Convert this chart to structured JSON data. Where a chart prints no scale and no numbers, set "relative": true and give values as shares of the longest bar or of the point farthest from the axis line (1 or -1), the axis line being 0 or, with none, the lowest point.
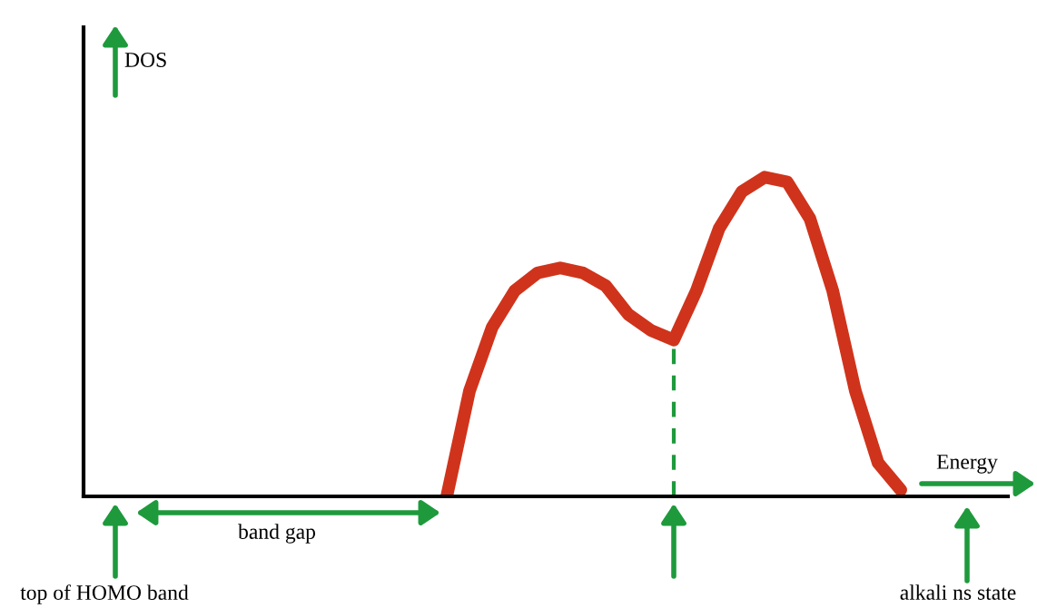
{
  "chart_data": {
    "type": "line",
    "relative": true,
    "categories": [
      null,
      null,
      null,
      null,
      null,
      null,
      null,
      null,
      null,
      null,
      null,
      null,
      null,
      null,
      null,
      null,
      null,
      null,
      null,
      null,
      null,
      null,
      null,
      null,
      null,
      null,
      null,
      null,
      null,
      null,
      null,
      null,
      null,
      null,
      null,
      null,
      null,
      null,
      null,
      null,
      null
    ],
    "series": [
      {
        "color": "#d0331b",
        "values": [
          null,
          null,
          null,
          null,
          null,
          null,
          null,
          null,
          null,
          null,
          null,
          null,
          null,
          null,
          null,
          null,
          0,
          0.33,
          0.53,
          0.645,
          0.7,
          0.716,
          0.7,
          0.66,
          0.57,
          0.52,
          0.49,
          0.645,
          0.84,
          0.955,
          1.0,
          0.985,
          0.87,
          0.645,
          0.33,
          0.105,
          0.02,
          null,
          null,
          null,
          null
        ]
      }
    ],
    "annotations": [
      "DOS",
      "Energy",
      "band gap",
      "top of HOMO band",
      "alkali ns state"
    ],
    "grid": false,
    "legend": false,
    "line_style": "solid"
  }
}
